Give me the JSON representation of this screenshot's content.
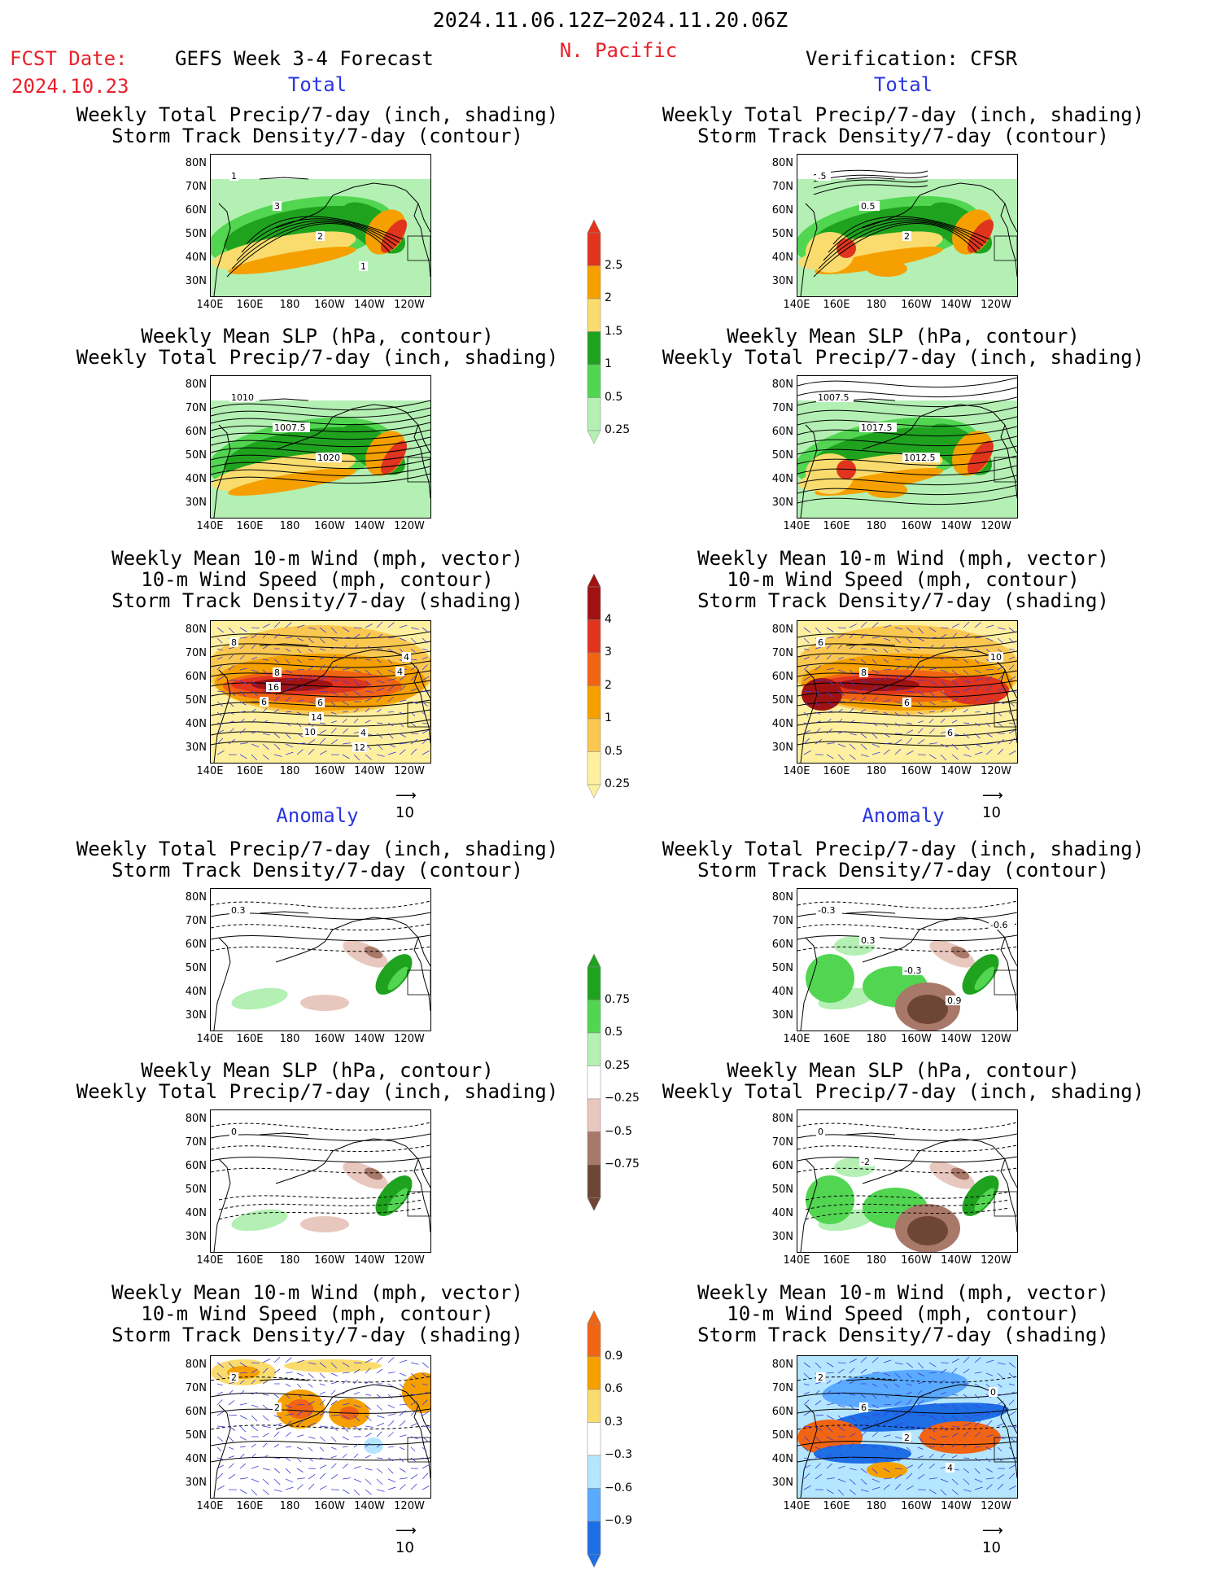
{
  "header": {
    "date_range": "2024.11.06.12Z−2024.11.20.06Z",
    "fcst_label": "FCST Date:",
    "fcst_date": "2024.10.23",
    "forecast_title": "GEFS Week 3-4 Forecast",
    "region": "N. Pacific",
    "verification": "Verification: CFSR"
  },
  "sections": {
    "total": "Total",
    "anomaly": "Anomaly"
  },
  "panel_titles": {
    "precip_storm": [
      "Weekly Total Precip/7-day (inch, shading)",
      "Storm Track Density/7-day (contour)"
    ],
    "slp_precip": [
      "Weekly Mean SLP (hPa, contour)",
      "Weekly Total Precip/7-day (inch, shading)"
    ],
    "wind_storm": [
      "Weekly Mean 10-m Wind (mph, vector)",
      "10-m Wind Speed (mph, contour)",
      "Storm Track Density/7-day (shading)"
    ]
  },
  "axes": {
    "lat_ticks": [
      "80N",
      "70N",
      "60N",
      "50N",
      "40N",
      "30N"
    ],
    "lon_ticks": [
      "140E",
      "160E",
      "180",
      "160W",
      "140W",
      "120W"
    ]
  },
  "ref_vector": "10",
  "colorbars": {
    "precip_total": {
      "labels": [
        "2.5",
        "2",
        "1.5",
        "1",
        "0.5",
        "0.25"
      ],
      "colors": [
        "#e0341e",
        "#f5a000",
        "#fadc6e",
        "#1fa31f",
        "#52d652",
        "#b4f0b4"
      ]
    },
    "storm_total": {
      "labels": [
        "4",
        "3",
        "2",
        "1",
        "0.5",
        "0.25"
      ],
      "colors": [
        "#a01212",
        "#e0341e",
        "#f06414",
        "#f5a000",
        "#fac850",
        "#fff0a0"
      ]
    },
    "precip_anom": {
      "labels": [
        "0.75",
        "0.5",
        "0.25",
        "−0.25",
        "−0.5",
        "−0.75"
      ],
      "colors": [
        "#1fa31f",
        "#52d652",
        "#b4f0b4",
        "#ffffff",
        "#e8c8be",
        "#a87868",
        "#6e4636"
      ]
    },
    "storm_anom": {
      "labels": [
        "0.9",
        "0.6",
        "0.3",
        "−0.3",
        "−0.6",
        "−0.9"
      ],
      "colors": [
        "#f06414",
        "#f5a000",
        "#fadc6e",
        "#ffffff",
        "#b4e6ff",
        "#5aaaff",
        "#1e6ee6"
      ]
    }
  },
  "contour_labels": {
    "p1": [
      "1",
      "3",
      "2",
      "1"
    ],
    "p2": [
      ".5",
      "0.5",
      "2"
    ],
    "p3": [
      "1010",
      "1007.5",
      "1020"
    ],
    "p4": [
      "1007.5",
      "1017.5",
      "1012.5"
    ],
    "p5": [
      "8",
      "8",
      "6",
      "4",
      "4",
      "16",
      "14",
      "12",
      "4",
      "6",
      "10"
    ],
    "p6": [
      "6",
      "8",
      "6",
      "6",
      "10"
    ],
    "p7": [
      "0.3"
    ],
    "p8": [
      "-0.3",
      "0.3",
      "-0.3",
      "0.9",
      "-0.6"
    ],
    "p9": [
      "0"
    ],
    "p10": [
      "0",
      "-2"
    ],
    "p11": [
      "2",
      "2"
    ],
    "p12": [
      "2",
      "6",
      "2",
      "4",
      "0"
    ]
  }
}
